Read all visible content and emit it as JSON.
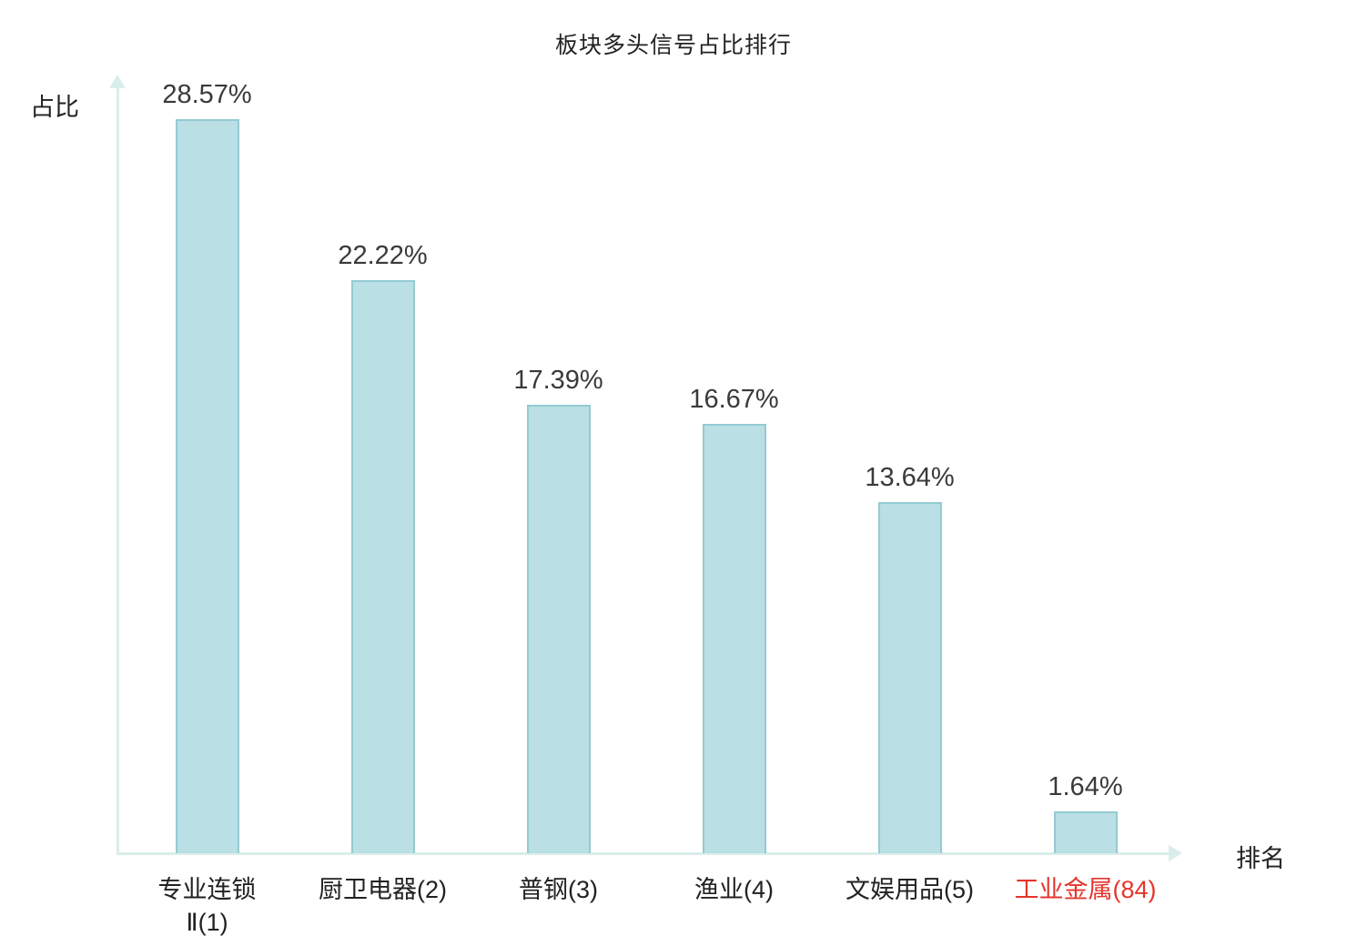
{
  "chart": {
    "title": "板块多头信号占比排行",
    "y_axis_label": "占比",
    "x_axis_label": "排名"
  },
  "chart_data": {
    "type": "bar",
    "title": "板块多头信号占比排行",
    "xlabel": "排名",
    "ylabel": "占比",
    "categories": [
      "专业连锁\nⅡ(1)",
      "厨卫电器(2)",
      "普钢(3)",
      "渔业(4)",
      "文娱用品(5)",
      "工业金属(84)"
    ],
    "values": [
      28.57,
      22.22,
      17.39,
      16.67,
      13.64,
      1.64
    ],
    "value_labels": [
      "28.57%",
      "22.22%",
      "17.39%",
      "16.67%",
      "13.64%",
      "1.64%"
    ],
    "highlight_index": 5,
    "highlight_color": "#e5352b",
    "bar_fill_color": "#badfe4",
    "bar_border_color": "#93cbd3",
    "axis_color": "#d9eeea",
    "text_color": "#3a3a3a",
    "ylim": [
      0,
      30
    ],
    "grid": false,
    "legend": "none"
  }
}
